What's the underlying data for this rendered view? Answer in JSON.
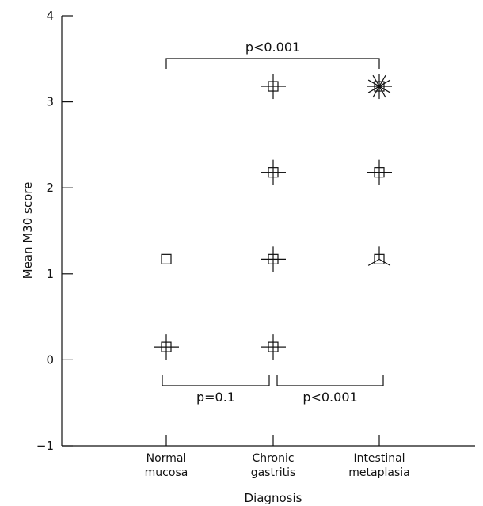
{
  "chart_data": {
    "type": "scatter",
    "xlabel": "Diagnosis",
    "ylabel": "Mean M30 score",
    "ylim": [
      -1,
      4
    ],
    "yticks": [
      "−1",
      "0",
      "1",
      "2",
      "3",
      "4"
    ],
    "categories": [
      [
        "Normal",
        "mucosa"
      ],
      [
        "Chronic",
        "gastritis"
      ],
      [
        "Intestinal",
        "metaplasia"
      ]
    ],
    "points": [
      {
        "category": 0,
        "y": 0.15,
        "n": 2
      },
      {
        "category": 0,
        "y": 1.17,
        "n": 1
      },
      {
        "category": 1,
        "y": 0.15,
        "n": 4
      },
      {
        "category": 1,
        "y": 1.17,
        "n": 2
      },
      {
        "category": 1,
        "y": 2.18,
        "n": 4
      },
      {
        "category": 1,
        "y": 3.18,
        "n": 2
      },
      {
        "category": 2,
        "y": 1.17,
        "n": 3
      },
      {
        "category": 2,
        "y": 2.18,
        "n": 2
      },
      {
        "category": 2,
        "y": 3.18,
        "n": 12
      }
    ],
    "grid": false,
    "annotations": [
      {
        "text": "p<0.001",
        "from": 0,
        "to": 2,
        "position": "top"
      },
      {
        "text": "p=0.1",
        "from": 0,
        "to": 1,
        "position": "bottom"
      },
      {
        "text": "p<0.001",
        "from": 1,
        "to": 2,
        "position": "bottom"
      }
    ]
  }
}
